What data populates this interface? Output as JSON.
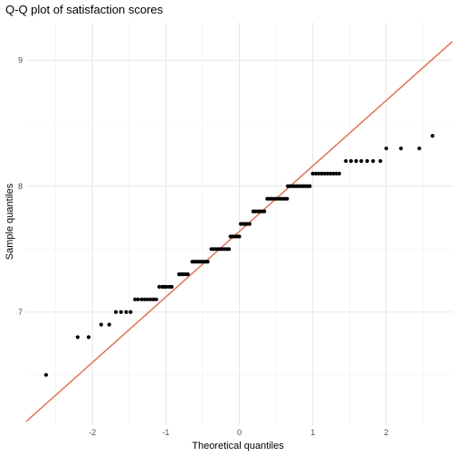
{
  "chart_data": {
    "type": "scatter",
    "title": "Q-Q plot of satisfaction scores",
    "xlabel": "Theoretical quantiles",
    "ylabel": "Sample quantiles",
    "xlim": [
      -2.9,
      2.9
    ],
    "ylim": [
      6.1,
      9.3
    ],
    "x_ticks": [
      -2,
      -1,
      0,
      1,
      2
    ],
    "y_ticks": [
      7,
      8,
      9
    ],
    "grid": true,
    "reference_line": {
      "color": "#e07a5f",
      "points": [
        [
          -2.9,
          6.13
        ],
        [
          2.9,
          9.15
        ]
      ]
    },
    "point_color": "#000000",
    "series": [
      {
        "points": [
          [
            -2.63,
            6.5
          ],
          [
            -2.2,
            6.8
          ],
          [
            -2.05,
            6.8
          ],
          [
            -1.88,
            6.9
          ],
          [
            -1.77,
            6.9
          ],
          [
            -1.68,
            7.0
          ],
          [
            -1.61,
            7.0
          ],
          [
            -1.54,
            7.0
          ],
          [
            -1.48,
            7.0
          ],
          [
            -1.42,
            7.1
          ],
          [
            -1.38,
            7.1
          ],
          [
            -1.33,
            7.1
          ],
          [
            -1.29,
            7.1
          ],
          [
            -1.25,
            7.1
          ],
          [
            -1.21,
            7.1
          ],
          [
            -1.17,
            7.1
          ],
          [
            -1.13,
            7.1
          ],
          [
            -1.09,
            7.2
          ],
          [
            -1.05,
            7.2
          ],
          [
            -1.02,
            7.2
          ],
          [
            -0.99,
            7.2
          ],
          [
            -0.95,
            7.2
          ],
          [
            -0.92,
            7.2
          ],
          [
            -0.82,
            7.3
          ],
          [
            -0.79,
            7.3
          ],
          [
            -0.76,
            7.3
          ],
          [
            -0.73,
            7.3
          ],
          [
            -0.7,
            7.3
          ],
          [
            -0.64,
            7.4
          ],
          [
            -0.61,
            7.4
          ],
          [
            -0.58,
            7.4
          ],
          [
            -0.55,
            7.4
          ],
          [
            -0.52,
            7.4
          ],
          [
            -0.49,
            7.4
          ],
          [
            -0.46,
            7.4
          ],
          [
            -0.43,
            7.4
          ],
          [
            -0.38,
            7.5
          ],
          [
            -0.35,
            7.5
          ],
          [
            -0.32,
            7.5
          ],
          [
            -0.29,
            7.5
          ],
          [
            -0.26,
            7.5
          ],
          [
            -0.23,
            7.5
          ],
          [
            -0.2,
            7.5
          ],
          [
            -0.17,
            7.5
          ],
          [
            -0.14,
            7.5
          ],
          [
            -0.12,
            7.6
          ],
          [
            -0.09,
            7.6
          ],
          [
            -0.06,
            7.6
          ],
          [
            -0.03,
            7.6
          ],
          [
            0.0,
            7.6
          ],
          [
            0.02,
            7.7
          ],
          [
            0.05,
            7.7
          ],
          [
            0.08,
            7.7
          ],
          [
            0.11,
            7.7
          ],
          [
            0.14,
            7.7
          ],
          [
            0.19,
            7.8
          ],
          [
            0.22,
            7.8
          ],
          [
            0.25,
            7.8
          ],
          [
            0.28,
            7.8
          ],
          [
            0.31,
            7.8
          ],
          [
            0.34,
            7.8
          ],
          [
            0.38,
            7.9
          ],
          [
            0.41,
            7.9
          ],
          [
            0.44,
            7.9
          ],
          [
            0.47,
            7.9
          ],
          [
            0.5,
            7.9
          ],
          [
            0.53,
            7.9
          ],
          [
            0.56,
            7.9
          ],
          [
            0.59,
            7.9
          ],
          [
            0.62,
            7.9
          ],
          [
            0.65,
            7.9
          ],
          [
            0.66,
            8.0
          ],
          [
            0.69,
            8.0
          ],
          [
            0.72,
            8.0
          ],
          [
            0.75,
            8.0
          ],
          [
            0.78,
            8.0
          ],
          [
            0.81,
            8.0
          ],
          [
            0.84,
            8.0
          ],
          [
            0.87,
            8.0
          ],
          [
            0.9,
            8.0
          ],
          [
            0.93,
            8.0
          ],
          [
            0.96,
            8.0
          ],
          [
            1.0,
            8.1
          ],
          [
            1.04,
            8.1
          ],
          [
            1.08,
            8.1
          ],
          [
            1.12,
            8.1
          ],
          [
            1.16,
            8.1
          ],
          [
            1.2,
            8.1
          ],
          [
            1.24,
            8.1
          ],
          [
            1.28,
            8.1
          ],
          [
            1.32,
            8.1
          ],
          [
            1.36,
            8.1
          ],
          [
            1.45,
            8.2
          ],
          [
            1.52,
            8.2
          ],
          [
            1.59,
            8.2
          ],
          [
            1.66,
            8.2
          ],
          [
            1.74,
            8.2
          ],
          [
            1.82,
            8.2
          ],
          [
            1.92,
            8.2
          ],
          [
            2.0,
            8.3
          ],
          [
            2.2,
            8.3
          ],
          [
            2.45,
            8.3
          ],
          [
            2.63,
            8.4
          ]
        ]
      }
    ]
  }
}
